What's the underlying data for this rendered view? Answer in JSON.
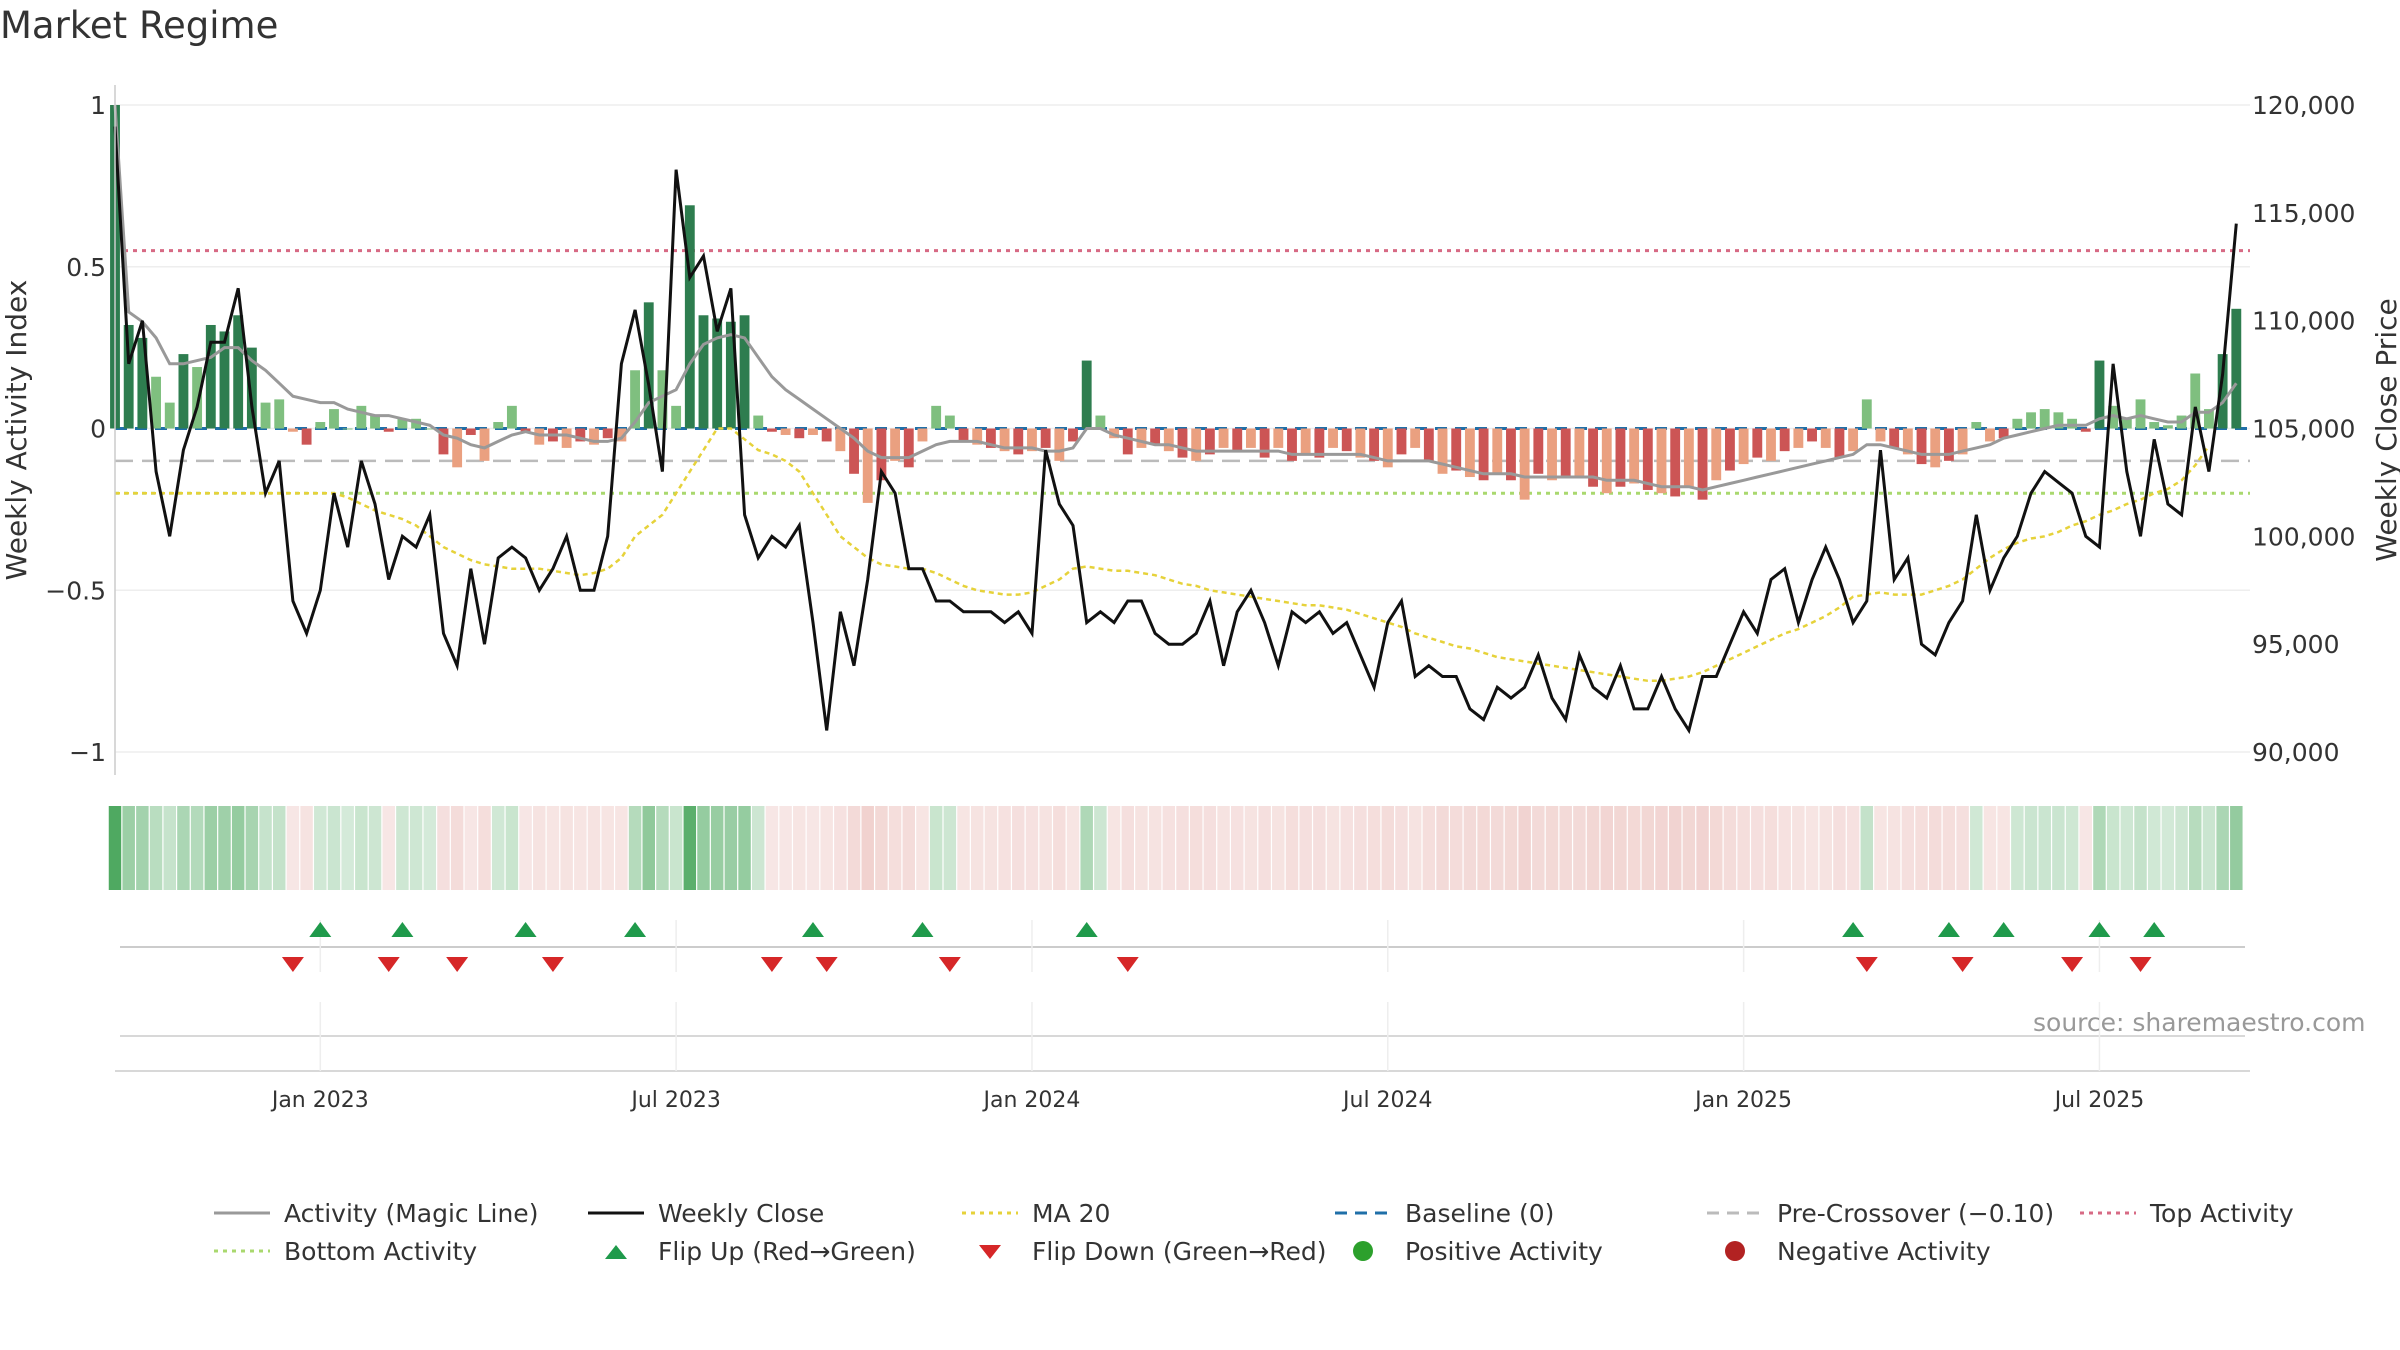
{
  "title": "Market Regime",
  "source": "source: sharemaestro.com",
  "colors": {
    "magic": "#999999",
    "close": "#111111",
    "ma20": "#e6d23a",
    "baseline": "#1f6fa8",
    "precross": "#bbbbbb",
    "top": "#d76a84",
    "bottom": "#a9d86e",
    "up": "#1f9a4b",
    "down": "#d62728",
    "pos": "#2ca02c",
    "neg": "#b22222",
    "bar_pos_strong": "#2e7d4f",
    "bar_pos_light": "#7fbf7f",
    "bar_neg_strong": "#cc5555",
    "bar_neg_light": "#eaa080"
  },
  "chart_data": {
    "type": "bar",
    "title": "Market Regime",
    "ylabel": "Weekly Activity Index",
    "y2label": "Weekly Close Price",
    "ylim": [
      -1,
      1
    ],
    "y2lim": [
      90000,
      120000
    ],
    "y_ticks": [
      {
        "v": 1,
        "label": "1"
      },
      {
        "v": 0.5,
        "label": "0.5"
      },
      {
        "v": 0,
        "label": "0"
      },
      {
        "v": -0.5,
        "label": "−0.5"
      },
      {
        "v": -1,
        "label": "−1"
      }
    ],
    "y2_ticks": [
      {
        "v": 120000,
        "label": "120,000"
      },
      {
        "v": 115000,
        "label": "115,000"
      },
      {
        "v": 110000,
        "label": "110,000"
      },
      {
        "v": 105000,
        "label": "105,000"
      },
      {
        "v": 100000,
        "label": "100,000"
      },
      {
        "v": 95000,
        "label": "95,000"
      },
      {
        "v": 90000,
        "label": "90,000"
      }
    ],
    "x_ticks": [
      {
        "week": 15,
        "label": "Jan 2023"
      },
      {
        "week": 41,
        "label": "Jul 2023"
      },
      {
        "week": 67,
        "label": "Jan 2024"
      },
      {
        "week": 93,
        "label": "Jul 2024"
      },
      {
        "week": 119,
        "label": "Jan 2025"
      },
      {
        "week": 145,
        "label": "Jul 2025"
      }
    ],
    "grid": true,
    "legend_position": "bottom",
    "top_activity": 0.55,
    "bottom_activity": -0.2,
    "pre_crossover": -0.1,
    "baseline": 0,
    "weeks": 157,
    "activity": [
      1.0,
      0.32,
      0.28,
      0.16,
      0.08,
      0.23,
      0.19,
      0.32,
      0.3,
      0.35,
      0.25,
      0.08,
      0.09,
      -0.01,
      -0.05,
      0.02,
      0.06,
      0.0,
      0.07,
      0.04,
      -0.01,
      0.03,
      0.03,
      0.0,
      -0.08,
      -0.12,
      -0.02,
      -0.1,
      0.02,
      0.07,
      -0.01,
      -0.05,
      -0.04,
      -0.06,
      -0.04,
      -0.05,
      -0.03,
      -0.04,
      0.18,
      0.39,
      0.18,
      0.07,
      0.69,
      0.35,
      0.34,
      0.33,
      0.35,
      0.04,
      -0.01,
      -0.02,
      -0.03,
      -0.02,
      -0.04,
      -0.07,
      -0.14,
      -0.23,
      -0.16,
      -0.1,
      -0.12,
      -0.04,
      0.07,
      0.04,
      -0.04,
      -0.05,
      -0.06,
      -0.07,
      -0.08,
      -0.07,
      -0.06,
      -0.1,
      -0.04,
      0.21,
      0.04,
      -0.03,
      -0.08,
      -0.06,
      -0.05,
      -0.07,
      -0.09,
      -0.1,
      -0.08,
      -0.06,
      -0.07,
      -0.06,
      -0.09,
      -0.06,
      -0.1,
      -0.08,
      -0.09,
      -0.06,
      -0.07,
      -0.09,
      -0.1,
      -0.12,
      -0.08,
      -0.06,
      -0.1,
      -0.14,
      -0.13,
      -0.15,
      -0.16,
      -0.14,
      -0.16,
      -0.22,
      -0.14,
      -0.16,
      -0.15,
      -0.15,
      -0.18,
      -0.2,
      -0.18,
      -0.17,
      -0.19,
      -0.2,
      -0.21,
      -0.18,
      -0.22,
      -0.16,
      -0.13,
      -0.11,
      -0.09,
      -0.1,
      -0.07,
      -0.06,
      -0.04,
      -0.06,
      -0.09,
      -0.07,
      0.09,
      -0.04,
      -0.06,
      -0.08,
      -0.11,
      -0.12,
      -0.1,
      -0.08,
      0.02,
      -0.04,
      -0.03,
      0.03,
      0.05,
      0.06,
      0.05,
      0.03,
      -0.01,
      0.21,
      0.07,
      0.03,
      0.09,
      0.02,
      0.01,
      0.04,
      0.17,
      0.06,
      0.23,
      0.37
    ],
    "magic_line": [
      1.0,
      0.36,
      0.33,
      0.28,
      0.2,
      0.2,
      0.21,
      0.22,
      0.25,
      0.25,
      0.21,
      0.18,
      0.14,
      0.1,
      0.09,
      0.08,
      0.08,
      0.06,
      0.05,
      0.04,
      0.04,
      0.03,
      0.02,
      0.01,
      -0.02,
      -0.03,
      -0.05,
      -0.06,
      -0.04,
      -0.02,
      -0.01,
      -0.02,
      -0.02,
      -0.02,
      -0.03,
      -0.04,
      -0.04,
      -0.03,
      0.02,
      0.08,
      0.1,
      0.12,
      0.2,
      0.26,
      0.28,
      0.29,
      0.28,
      0.22,
      0.16,
      0.12,
      0.09,
      0.06,
      0.03,
      0.0,
      -0.03,
      -0.07,
      -0.09,
      -0.09,
      -0.09,
      -0.07,
      -0.05,
      -0.04,
      -0.04,
      -0.04,
      -0.05,
      -0.06,
      -0.06,
      -0.06,
      -0.07,
      -0.07,
      -0.06,
      0.0,
      0.0,
      -0.02,
      -0.03,
      -0.04,
      -0.05,
      -0.05,
      -0.06,
      -0.07,
      -0.07,
      -0.07,
      -0.07,
      -0.07,
      -0.07,
      -0.07,
      -0.08,
      -0.08,
      -0.08,
      -0.08,
      -0.08,
      -0.08,
      -0.09,
      -0.1,
      -0.1,
      -0.1,
      -0.1,
      -0.11,
      -0.12,
      -0.13,
      -0.14,
      -0.14,
      -0.14,
      -0.15,
      -0.15,
      -0.15,
      -0.15,
      -0.15,
      -0.15,
      -0.16,
      -0.16,
      -0.16,
      -0.17,
      -0.18,
      -0.18,
      -0.18,
      -0.19,
      -0.18,
      -0.17,
      -0.16,
      -0.15,
      -0.14,
      -0.13,
      -0.12,
      -0.11,
      -0.1,
      -0.09,
      -0.08,
      -0.05,
      -0.05,
      -0.06,
      -0.07,
      -0.08,
      -0.08,
      -0.08,
      -0.07,
      -0.06,
      -0.05,
      -0.03,
      -0.02,
      -0.01,
      0.0,
      0.01,
      0.01,
      0.01,
      0.03,
      0.04,
      0.03,
      0.04,
      0.03,
      0.02,
      0.02,
      0.05,
      0.05,
      0.08,
      0.14
    ],
    "weekly_close": [
      119000,
      108000,
      110000,
      103000,
      100000,
      104000,
      106000,
      109000,
      109000,
      111500,
      106000,
      102000,
      103500,
      97000,
      95500,
      97500,
      102000,
      99500,
      103500,
      101500,
      98000,
      100000,
      99500,
      101000,
      95500,
      94000,
      98500,
      95000,
      99000,
      99500,
      99000,
      97500,
      98500,
      100000,
      97500,
      97500,
      100000,
      108000,
      110500,
      107000,
      103000,
      117000,
      112000,
      113000,
      109500,
      111500,
      101000,
      99000,
      100000,
      99500,
      100500,
      96000,
      91000,
      96500,
      94000,
      98000,
      103000,
      102000,
      98500,
      98500,
      97000,
      97000,
      96500,
      96500,
      96500,
      96000,
      96500,
      95500,
      104000,
      101500,
      100500,
      96000,
      96500,
      96000,
      97000,
      97000,
      95500,
      95000,
      95000,
      95500,
      97000,
      94000,
      96500,
      97500,
      96000,
      94000,
      96500,
      96000,
      96500,
      95500,
      96000,
      94500,
      93000,
      96000,
      97000,
      93500,
      94000,
      93500,
      93500,
      92000,
      91500,
      93000,
      92500,
      93000,
      94500,
      92500,
      91500,
      94500,
      93000,
      92500,
      94000,
      92000,
      92000,
      93500,
      92000,
      91000,
      93500,
      93500,
      95000,
      96500,
      95500,
      98000,
      98500,
      96000,
      98000,
      99500,
      98000,
      96000,
      97000,
      104000,
      98000,
      99000,
      95000,
      94500,
      96000,
      97000,
      101000,
      97500,
      99000,
      100000,
      102000,
      103000,
      102500,
      102000,
      100000,
      99500,
      108000,
      103000,
      100000,
      104500,
      101500,
      101000,
      106000,
      103000,
      107500,
      114500
    ],
    "ma20": [
      102000,
      102000,
      102000,
      102000,
      102000,
      102000,
      102000,
      102000,
      102000,
      102000,
      102000,
      102000,
      102000,
      102000,
      102000,
      102000,
      102000,
      101800,
      101500,
      101200,
      101000,
      100800,
      100500,
      100000,
      99500,
      99200,
      98900,
      98700,
      98600,
      98500,
      98500,
      98500,
      98400,
      98300,
      98200,
      98300,
      98500,
      99000,
      100000,
      100500,
      101000,
      102000,
      103000,
      104000,
      105000,
      105000,
      104500,
      104000,
      103800,
      103500,
      103000,
      102000,
      101000,
      100000,
      99500,
      99000,
      98700,
      98600,
      98500,
      98500,
      98300,
      98000,
      97700,
      97500,
      97400,
      97300,
      97300,
      97400,
      97700,
      98000,
      98500,
      98600,
      98500,
      98400,
      98400,
      98300,
      98200,
      98000,
      97800,
      97700,
      97500,
      97400,
      97300,
      97200,
      97100,
      97000,
      96900,
      96800,
      96800,
      96700,
      96600,
      96400,
      96200,
      96000,
      95800,
      95500,
      95300,
      95100,
      94900,
      94800,
      94600,
      94400,
      94300,
      94200,
      94100,
      94000,
      93900,
      93800,
      93700,
      93600,
      93500,
      93400,
      93300,
      93300,
      93400,
      93500,
      93700,
      94000,
      94300,
      94600,
      94900,
      95200,
      95500,
      95700,
      96000,
      96300,
      96700,
      97200,
      97300,
      97400,
      97300,
      97300,
      97300,
      97500,
      97700,
      98000,
      98500,
      99000,
      99400,
      99700,
      99900,
      100000,
      100200,
      100500,
      100700,
      101000,
      101200,
      101500,
      101700,
      102000,
      102200,
      102600,
      103300,
      104200
    ],
    "flip_up_weeks": [
      15,
      21,
      30,
      38,
      51,
      59,
      71,
      127,
      134,
      138,
      145,
      149
    ],
    "flip_down_weeks": [
      13,
      20,
      25,
      32,
      48,
      52,
      61,
      74,
      128,
      135,
      143,
      148
    ]
  },
  "legend": [
    {
      "key": "magic",
      "label": "Activity (Magic Line)",
      "style": "solid"
    },
    {
      "key": "close",
      "label": "Weekly Close",
      "style": "solid"
    },
    {
      "key": "ma20",
      "label": "MA 20",
      "style": "dotted"
    },
    {
      "key": "baseline",
      "label": "Baseline (0)",
      "style": "dashed"
    },
    {
      "key": "precross",
      "label": "Pre-Crossover (−0.10)",
      "style": "dashed"
    },
    {
      "key": "top",
      "label": "Top Activity",
      "style": "dotted"
    },
    {
      "key": "bottom",
      "label": "Bottom Activity",
      "style": "dotted"
    },
    {
      "key": "up",
      "label": "Flip Up (Red→Green)",
      "style": "tri-up"
    },
    {
      "key": "down",
      "label": "Flip Down (Green→Red)",
      "style": "tri-down"
    },
    {
      "key": "pos",
      "label": "Positive Activity",
      "style": "dot"
    },
    {
      "key": "neg",
      "label": "Negative Activity",
      "style": "dot"
    }
  ]
}
